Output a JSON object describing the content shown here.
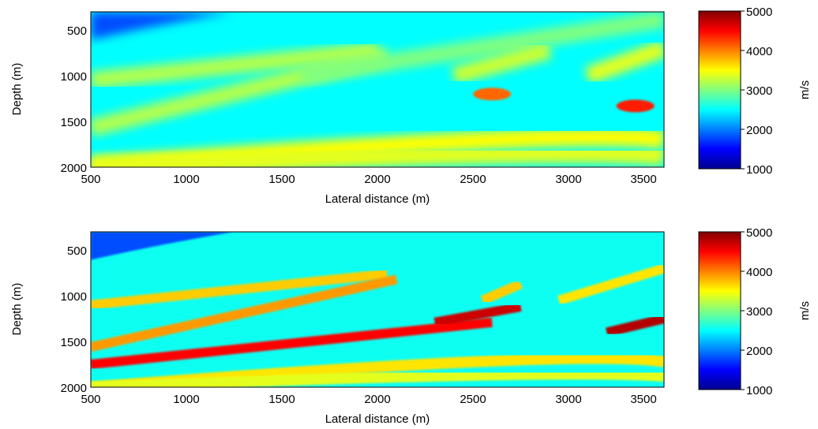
{
  "chart_data": [
    {
      "type": "heatmap",
      "title": "",
      "xlabel": "Lateral distance (m)",
      "ylabel": "Depth (m)",
      "xlim": [
        500,
        3500
      ],
      "ylim": [
        2000,
        300
      ],
      "xticks": [
        "500",
        "1000",
        "1500",
        "2000",
        "2500",
        "3000",
        "3500"
      ],
      "yticks": [
        "500",
        "1000",
        "1500",
        "2000"
      ],
      "colorbar": {
        "label": "m/s",
        "range": [
          1000,
          5000
        ],
        "ticks": [
          "1000",
          "2000",
          "3000",
          "4000",
          "5000"
        ]
      },
      "colormap": "jet",
      "background_velocity": 2500,
      "layers": [
        {
          "kind": "band",
          "x_start": 500,
          "depth_start": 1050,
          "x_end": 2000,
          "depth_end": 720,
          "velocity": 3200
        },
        {
          "kind": "band",
          "x_start": 500,
          "depth_start": 1570,
          "x_end": 2050,
          "depth_end": 780,
          "velocity": 3200
        },
        {
          "kind": "band",
          "x_start": 1600,
          "depth_start": 1000,
          "x_end": 3500,
          "depth_end": 380,
          "velocity": 3000
        },
        {
          "kind": "band",
          "x_start": 2400,
          "depth_start": 1000,
          "x_end": 2900,
          "depth_end": 720,
          "velocity": 3300
        },
        {
          "kind": "band",
          "x_start": 3100,
          "depth_start": 1000,
          "x_end": 3500,
          "depth_end": 700,
          "velocity": 3400
        },
        {
          "kind": "arch",
          "x_start": 500,
          "depth_at_start": 1990,
          "x_peak": 3100,
          "depth_at_peak": 1640,
          "x_end": 3500,
          "depth_at_end": 1700,
          "velocity": 3500
        },
        {
          "kind": "arch",
          "x_start": 500,
          "depth_at_start": 2000,
          "x_peak": 3100,
          "depth_at_peak": 1820,
          "x_end": 3500,
          "depth_at_end": 1880,
          "velocity": 3400
        }
      ],
      "anomalies": [
        {
          "x": 2600,
          "depth": 1200,
          "velocity": 4100
        },
        {
          "x": 3350,
          "depth": 1330,
          "velocity": 4400
        }
      ]
    },
    {
      "type": "heatmap",
      "title": "",
      "xlabel": "Lateral distance (m)",
      "ylabel": "Depth (m)",
      "xlim": [
        500,
        3500
      ],
      "ylim": [
        2000,
        300
      ],
      "xticks": [
        "500",
        "1000",
        "1500",
        "2000",
        "2500",
        "3000",
        "3500"
      ],
      "yticks": [
        "500",
        "1000",
        "1500",
        "2000"
      ],
      "colorbar": {
        "label": "m/s",
        "range": [
          1000,
          5000
        ],
        "ticks": [
          "1000",
          "2000",
          "3000",
          "4000",
          "5000"
        ]
      },
      "colormap": "jet",
      "background_velocity": 2550,
      "layers": [
        {
          "kind": "band",
          "x_start": 500,
          "depth_start": 1100,
          "x_end": 2050,
          "depth_end": 760,
          "velocity": 3700
        },
        {
          "kind": "band",
          "x_start": 500,
          "depth_start": 1560,
          "x_end": 2100,
          "depth_end": 820,
          "velocity": 3900
        },
        {
          "kind": "band",
          "x_start": 500,
          "depth_start": 1750,
          "x_end": 2600,
          "depth_end": 1290,
          "velocity": 4500
        },
        {
          "kind": "band",
          "x_start": 2300,
          "depth_start": 1290,
          "x_end": 2750,
          "depth_end": 1120,
          "velocity": 4700
        },
        {
          "kind": "band",
          "x_start": 2550,
          "depth_start": 1050,
          "x_end": 2750,
          "depth_end": 870,
          "velocity": 3700
        },
        {
          "kind": "band",
          "x_start": 2950,
          "depth_start": 1050,
          "x_end": 3500,
          "depth_end": 700,
          "velocity": 3600
        },
        {
          "kind": "band",
          "x_start": 3200,
          "depth_start": 1400,
          "x_end": 3500,
          "depth_end": 1250,
          "velocity": 4800
        },
        {
          "kind": "arch",
          "x_start": 500,
          "depth_at_start": 2000,
          "x_peak": 3050,
          "depth_at_peak": 1650,
          "x_end": 3500,
          "depth_at_end": 1720,
          "velocity": 3600
        },
        {
          "kind": "arch",
          "x_start": 500,
          "depth_at_start": 2000,
          "x_peak": 3050,
          "depth_at_peak": 1830,
          "x_end": 3500,
          "depth_at_end": 1880,
          "velocity": 3400
        }
      ],
      "anomalies": []
    }
  ]
}
